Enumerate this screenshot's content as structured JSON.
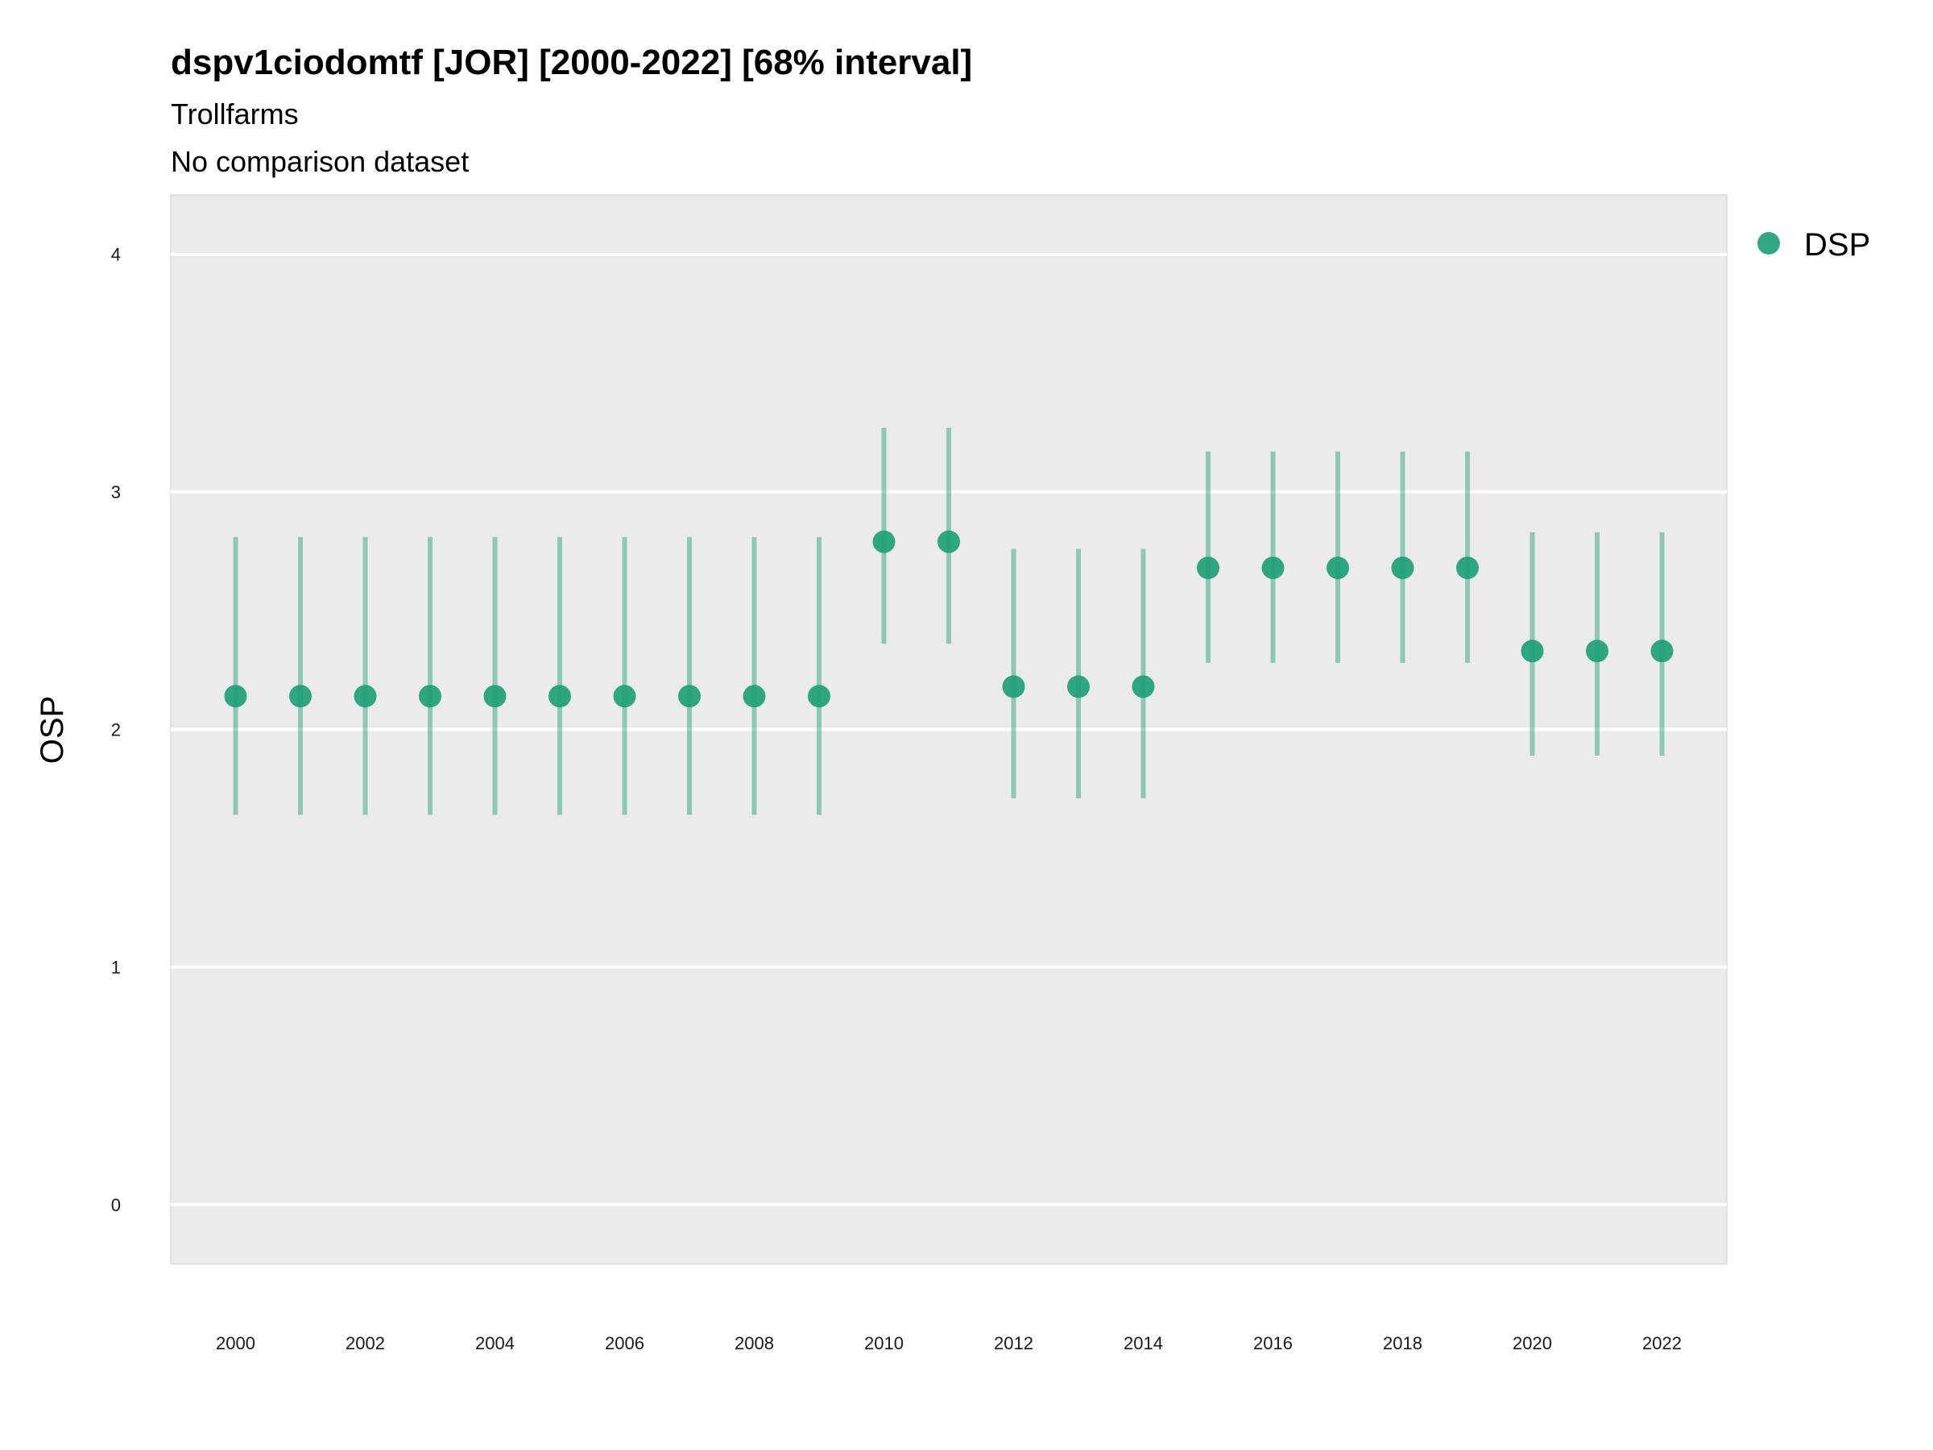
{
  "chart_data": {
    "type": "scatter",
    "title": "dspv1ciodomtf [JOR] [2000-2022] [68% interval]",
    "subtitle": "Trollfarms",
    "caption": "No comparison dataset",
    "xlabel": "",
    "ylabel": "OSP",
    "xlim": [
      1999,
      2023
    ],
    "ylim": [
      -0.25,
      4.25
    ],
    "x_ticks": [
      "2000",
      "2002",
      "2004",
      "2006",
      "2008",
      "2010",
      "2012",
      "2014",
      "2016",
      "2018",
      "2020",
      "2022"
    ],
    "y_ticks": [
      "0",
      "1",
      "2",
      "3",
      "4"
    ],
    "grid": true,
    "legend_position": "top-right",
    "series": [
      {
        "name": "DSP",
        "color": "#1b9e77",
        "points": [
          {
            "x": 2000,
            "y": 2.14,
            "low": 1.64,
            "high": 2.81
          },
          {
            "x": 2001,
            "y": 2.14,
            "low": 1.64,
            "high": 2.81
          },
          {
            "x": 2002,
            "y": 2.14,
            "low": 1.64,
            "high": 2.81
          },
          {
            "x": 2003,
            "y": 2.14,
            "low": 1.64,
            "high": 2.81
          },
          {
            "x": 2004,
            "y": 2.14,
            "low": 1.64,
            "high": 2.81
          },
          {
            "x": 2005,
            "y": 2.14,
            "low": 1.64,
            "high": 2.81
          },
          {
            "x": 2006,
            "y": 2.14,
            "low": 1.64,
            "high": 2.81
          },
          {
            "x": 2007,
            "y": 2.14,
            "low": 1.64,
            "high": 2.81
          },
          {
            "x": 2008,
            "y": 2.14,
            "low": 1.64,
            "high": 2.81
          },
          {
            "x": 2009,
            "y": 2.14,
            "low": 1.64,
            "high": 2.81
          },
          {
            "x": 2010,
            "y": 2.79,
            "low": 2.36,
            "high": 3.27
          },
          {
            "x": 2011,
            "y": 2.79,
            "low": 2.36,
            "high": 3.27
          },
          {
            "x": 2012,
            "y": 2.18,
            "low": 1.71,
            "high": 2.76
          },
          {
            "x": 2013,
            "y": 2.18,
            "low": 1.71,
            "high": 2.76
          },
          {
            "x": 2014,
            "y": 2.18,
            "low": 1.71,
            "high": 2.76
          },
          {
            "x": 2015,
            "y": 2.68,
            "low": 2.28,
            "high": 3.17
          },
          {
            "x": 2016,
            "y": 2.68,
            "low": 2.28,
            "high": 3.17
          },
          {
            "x": 2017,
            "y": 2.68,
            "low": 2.28,
            "high": 3.17
          },
          {
            "x": 2018,
            "y": 2.68,
            "low": 2.28,
            "high": 3.17
          },
          {
            "x": 2019,
            "y": 2.68,
            "low": 2.28,
            "high": 3.17
          },
          {
            "x": 2020,
            "y": 2.33,
            "low": 1.89,
            "high": 2.83
          },
          {
            "x": 2021,
            "y": 2.33,
            "low": 1.89,
            "high": 2.83
          },
          {
            "x": 2022,
            "y": 2.33,
            "low": 1.89,
            "high": 2.83
          }
        ]
      }
    ]
  }
}
